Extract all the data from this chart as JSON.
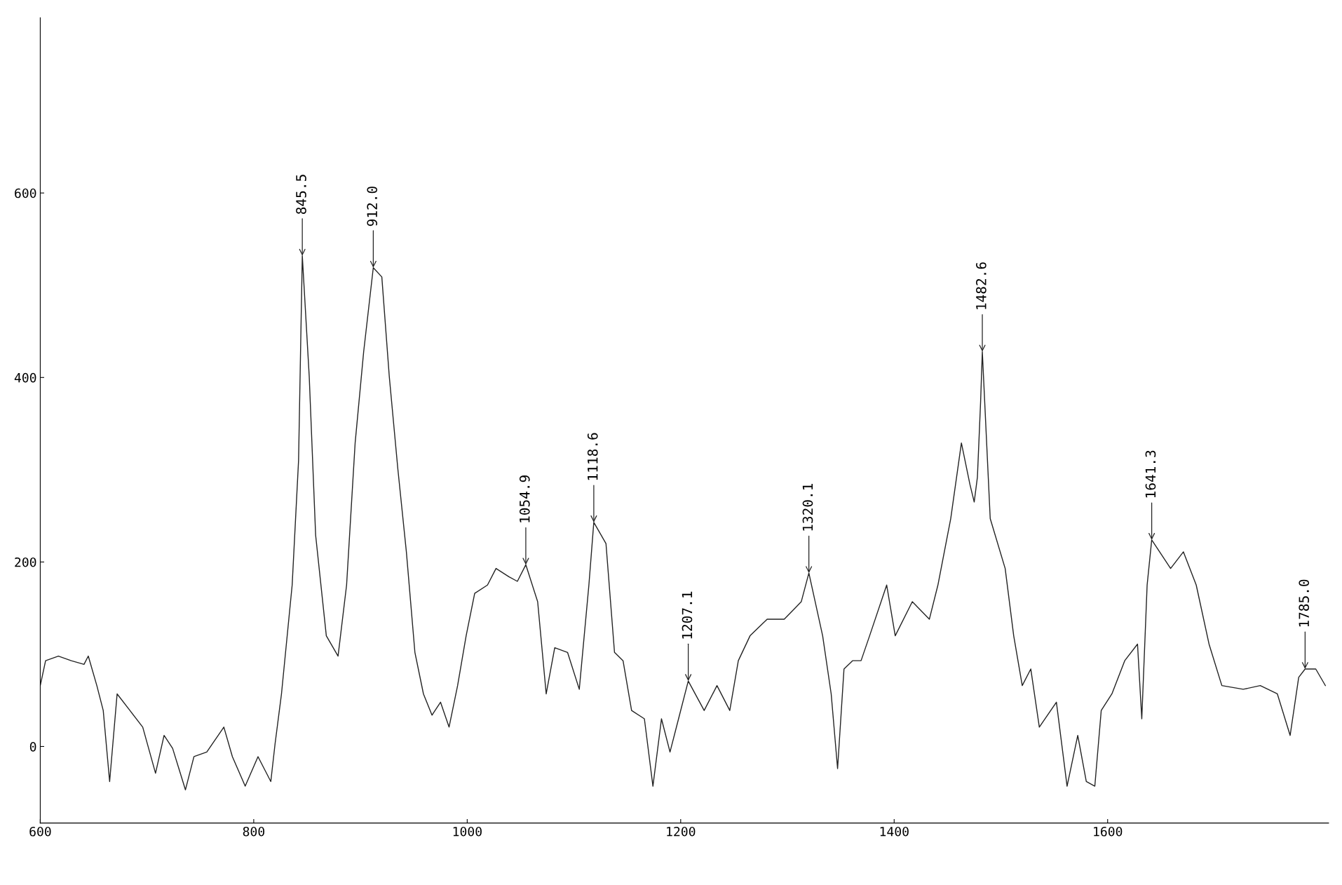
{
  "chart_data": {
    "type": "line",
    "xlim": [
      600,
      1807
    ],
    "ylim": [
      -83,
      790
    ],
    "xticks": [
      600,
      800,
      1000,
      1200,
      1400,
      1600
    ],
    "yticks": [
      0,
      200,
      400,
      600
    ],
    "grid": false,
    "marker": "none",
    "line_style": "solid",
    "series": [
      {
        "color": "#222222",
        "x": [
          600,
          605,
          617,
          629,
          641,
          645,
          653,
          659,
          665,
          672,
          684,
          696,
          708,
          716,
          724,
          736,
          744,
          756,
          772,
          780,
          792,
          804,
          816,
          820,
          826,
          836,
          842,
          845.5,
          852,
          858,
          868,
          879,
          887,
          895,
          903,
          912,
          920,
          927,
          935,
          943,
          951,
          959,
          967,
          975,
          983,
          991,
          999,
          1007,
          1019,
          1027,
          1039,
          1047,
          1054.9,
          1066,
          1074,
          1082,
          1094,
          1105,
          1114,
          1118.6,
          1130,
          1138,
          1146,
          1154,
          1166,
          1174,
          1182,
          1190,
          1198,
          1207.1,
          1222,
          1234,
          1246,
          1254,
          1265,
          1281,
          1297,
          1313,
          1320.1,
          1333,
          1341,
          1347,
          1353,
          1361,
          1369,
          1377,
          1393,
          1401,
          1417,
          1433,
          1441,
          1453,
          1463,
          1471,
          1475,
          1478,
          1481,
          1482.6,
          1490,
          1504,
          1512,
          1520,
          1528,
          1536,
          1552,
          1562,
          1572,
          1580,
          1588,
          1594,
          1604,
          1616,
          1628,
          1632,
          1637,
          1641.3,
          1659,
          1671,
          1683,
          1695,
          1707,
          1727,
          1743,
          1759,
          1771,
          1779,
          1785.0,
          1795,
          1804
        ],
        "values": [
          66,
          93,
          98,
          93,
          89,
          98,
          66,
          39,
          -38,
          57,
          39,
          21,
          -29,
          12,
          -2,
          -47,
          -11,
          -6,
          21,
          -11,
          -43,
          -11,
          -38,
          3,
          57,
          175,
          310,
          532,
          401,
          229,
          120,
          98,
          175,
          329,
          428,
          519,
          509,
          401,
          301,
          211,
          102,
          57,
          34,
          48,
          21,
          66,
          120,
          166,
          175,
          193,
          184,
          179,
          197,
          157,
          57,
          107,
          102,
          62,
          175,
          243,
          220,
          102,
          93,
          39,
          30,
          -43,
          30,
          -6,
          30,
          71,
          39,
          66,
          39,
          93,
          120,
          138,
          138,
          157,
          188,
          120,
          57,
          -24,
          84,
          93,
          93,
          120,
          175,
          120,
          157,
          138,
          175,
          247,
          329,
          284,
          265,
          292,
          374,
          428,
          247,
          193,
          120,
          66,
          84,
          21,
          48,
          -43,
          12,
          -38,
          -43,
          39,
          57,
          93,
          111,
          30,
          175,
          224,
          193,
          211,
          175,
          111,
          66,
          62,
          66,
          57,
          12,
          75,
          84,
          84,
          66
        ]
      }
    ],
    "annotations": [
      {
        "text": "845.5",
        "x": 845.5,
        "y": 532
      },
      {
        "text": "912.0",
        "x": 912.0,
        "y": 519
      },
      {
        "text": "1054.9",
        "x": 1054.9,
        "y": 197
      },
      {
        "text": "1118.6",
        "x": 1118.6,
        "y": 243
      },
      {
        "text": "1207.1",
        "x": 1207.1,
        "y": 71
      },
      {
        "text": "1320.1",
        "x": 1320.1,
        "y": 188
      },
      {
        "text": "1482.6",
        "x": 1482.6,
        "y": 428
      },
      {
        "text": "1641.3",
        "x": 1641.3,
        "y": 224
      },
      {
        "text": "1785.0",
        "x": 1785.0,
        "y": 84
      }
    ]
  }
}
